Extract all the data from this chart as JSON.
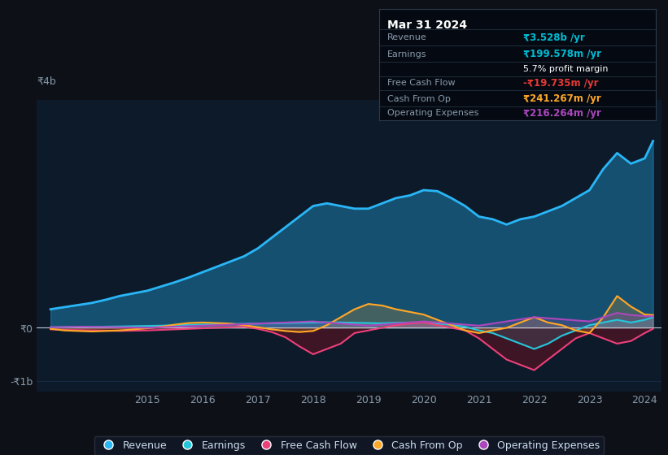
{
  "bg_color": "#0d1117",
  "plot_bg_color": "#0d1a2a",
  "title": "Mar 31 2024",
  "info_box_rows": [
    {
      "label": "Revenue",
      "value": "₹3.528b /yr",
      "value_color": "#00bcd4"
    },
    {
      "label": "Earnings",
      "value": "₹199.578m /yr",
      "value_color": "#00bcd4"
    },
    {
      "label": "",
      "value": "5.7% profit margin",
      "value_color": "#ffffff"
    },
    {
      "label": "Free Cash Flow",
      "value": "-₹19.735m /yr",
      "value_color": "#e53935"
    },
    {
      "label": "Cash From Op",
      "value": "₹241.267m /yr",
      "value_color": "#ffa726"
    },
    {
      "label": "Operating Expenses",
      "value": "₹216.264m /yr",
      "value_color": "#ab47bc"
    }
  ],
  "years": [
    2013.25,
    2013.5,
    2013.75,
    2014.0,
    2014.25,
    2014.5,
    2014.75,
    2015.0,
    2015.25,
    2015.5,
    2015.75,
    2016.0,
    2016.25,
    2016.5,
    2016.75,
    2017.0,
    2017.25,
    2017.5,
    2017.75,
    2018.0,
    2018.25,
    2018.5,
    2018.75,
    2019.0,
    2019.25,
    2019.5,
    2019.75,
    2020.0,
    2020.25,
    2020.5,
    2020.75,
    2021.0,
    2021.25,
    2021.5,
    2021.75,
    2022.0,
    2022.25,
    2022.5,
    2022.75,
    2023.0,
    2023.25,
    2023.5,
    2023.75,
    2024.0,
    2024.15
  ],
  "revenue": [
    350,
    390,
    430,
    470,
    530,
    600,
    650,
    700,
    780,
    860,
    950,
    1050,
    1150,
    1250,
    1350,
    1500,
    1700,
    1900,
    2100,
    2300,
    2350,
    2300,
    2250,
    2250,
    2350,
    2450,
    2500,
    2600,
    2580,
    2450,
    2300,
    2100,
    2050,
    1950,
    2050,
    2100,
    2200,
    2300,
    2450,
    2600,
    3000,
    3300,
    3100,
    3200,
    3528
  ],
  "earnings": [
    10,
    15,
    20,
    18,
    22,
    25,
    30,
    35,
    40,
    50,
    55,
    60,
    65,
    70,
    75,
    80,
    85,
    90,
    95,
    100,
    105,
    100,
    95,
    90,
    85,
    95,
    100,
    100,
    80,
    60,
    20,
    -50,
    -100,
    -200,
    -300,
    -400,
    -300,
    -150,
    -50,
    50,
    100,
    150,
    100,
    150,
    200
  ],
  "free_cash_flow": [
    -30,
    -40,
    -45,
    -50,
    -55,
    -60,
    -55,
    -50,
    -40,
    -30,
    -20,
    -10,
    0,
    10,
    20,
    -20,
    -80,
    -180,
    -350,
    -500,
    -400,
    -300,
    -100,
    -50,
    0,
    50,
    80,
    100,
    50,
    0,
    -50,
    -200,
    -400,
    -600,
    -700,
    -800,
    -600,
    -400,
    -200,
    -100,
    -200,
    -300,
    -250,
    -100,
    -20
  ],
  "cash_from_op": [
    -20,
    -50,
    -60,
    -70,
    -60,
    -50,
    -30,
    -10,
    20,
    60,
    90,
    100,
    90,
    80,
    50,
    10,
    -30,
    -60,
    -80,
    -60,
    50,
    200,
    350,
    450,
    420,
    350,
    300,
    250,
    150,
    50,
    -50,
    -100,
    -50,
    0,
    100,
    200,
    100,
    50,
    -50,
    -100,
    200,
    600,
    400,
    250,
    241
  ],
  "operating_expenses": [
    10,
    15,
    20,
    18,
    15,
    10,
    5,
    0,
    10,
    20,
    30,
    40,
    50,
    60,
    70,
    80,
    90,
    100,
    110,
    120,
    100,
    80,
    60,
    40,
    60,
    80,
    100,
    120,
    100,
    80,
    60,
    40,
    80,
    120,
    160,
    200,
    180,
    160,
    140,
    120,
    200,
    280,
    240,
    220,
    216
  ],
  "revenue_color": "#29b6f6",
  "earnings_color": "#26c6da",
  "fcf_color": "#ec407a",
  "cash_op_color": "#ffa726",
  "opex_color": "#ab47bc",
  "zero_line_color": "#c0c8d0",
  "grid_color": "#1e3a5f",
  "axis_label_color": "#8899aa",
  "xticks": [
    2015,
    2016,
    2017,
    2018,
    2019,
    2020,
    2021,
    2022,
    2023,
    2024
  ],
  "legend": [
    {
      "label": "Revenue",
      "color": "#29b6f6"
    },
    {
      "label": "Earnings",
      "color": "#26c6da"
    },
    {
      "label": "Free Cash Flow",
      "color": "#ec407a"
    },
    {
      "label": "Cash From Op",
      "color": "#ffa726"
    },
    {
      "label": "Operating Expenses",
      "color": "#ab47bc"
    }
  ]
}
